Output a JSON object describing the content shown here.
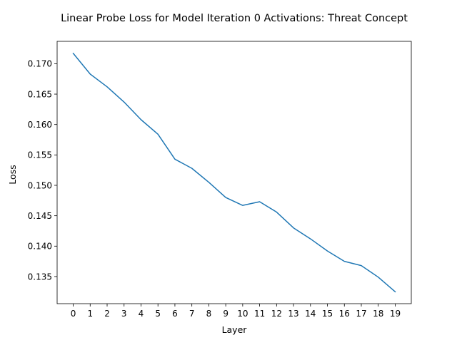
{
  "chart_data": {
    "type": "line",
    "title": "Linear Probe Loss for Model Iteration 0 Activations: Threat Concept",
    "xlabel": "Layer",
    "ylabel": "Loss",
    "x": [
      0,
      1,
      2,
      3,
      4,
      5,
      6,
      7,
      8,
      9,
      10,
      11,
      12,
      13,
      14,
      15,
      16,
      17,
      18,
      19
    ],
    "series": [
      {
        "values": [
          0.1717,
          0.1683,
          0.1662,
          0.1637,
          0.1608,
          0.1584,
          0.1543,
          0.1528,
          0.1505,
          0.148,
          0.1467,
          0.1473,
          0.1456,
          0.143,
          0.1412,
          0.1392,
          0.1375,
          0.1368,
          0.1349,
          0.1325
        ],
        "color": "#1f77b4"
      }
    ],
    "xticks": [
      "0",
      "1",
      "2",
      "3",
      "4",
      "5",
      "6",
      "7",
      "8",
      "9",
      "10",
      "11",
      "12",
      "13",
      "14",
      "15",
      "16",
      "17",
      "18",
      "19"
    ],
    "yticks": [
      "0.135",
      "0.140",
      "0.145",
      "0.150",
      "0.155",
      "0.160",
      "0.165",
      "0.170"
    ],
    "ylim": [
      0.13054,
      0.17368
    ],
    "xlim": [
      -0.95,
      19.95
    ],
    "grid": false,
    "legend": "none"
  }
}
